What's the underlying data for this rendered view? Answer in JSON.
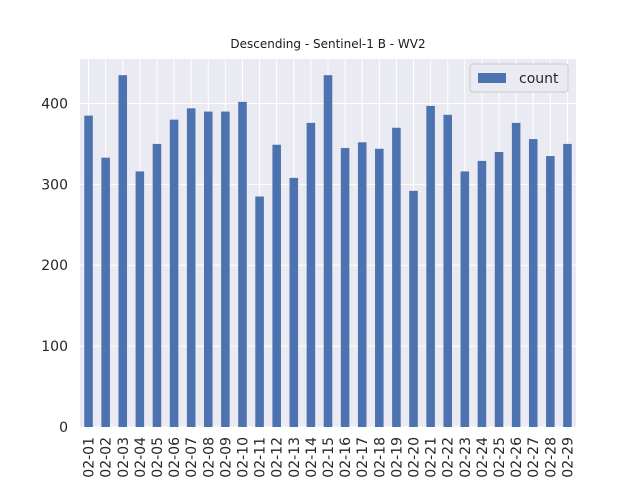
{
  "chart_data": {
    "type": "bar",
    "title": "Descending - Sentinel-1 B - WV2",
    "xlabel": "",
    "ylabel": "",
    "categories": [
      "02-01",
      "02-02",
      "02-03",
      "02-04",
      "02-05",
      "02-06",
      "02-07",
      "02-08",
      "02-09",
      "02-10",
      "02-11",
      "02-12",
      "02-13",
      "02-14",
      "02-15",
      "02-16",
      "02-17",
      "02-18",
      "02-19",
      "02-20",
      "02-21",
      "02-22",
      "02-23",
      "02-24",
      "02-25",
      "02-26",
      "02-27",
      "02-28",
      "02-29"
    ],
    "series": [
      {
        "name": "count",
        "color": "#4c72b0",
        "values": [
          385,
          333,
          435,
          316,
          350,
          380,
          394,
          390,
          390,
          402,
          285,
          349,
          308,
          376,
          435,
          345,
          352,
          344,
          370,
          292,
          397,
          386,
          316,
          329,
          340,
          376,
          356,
          335,
          350
        ]
      }
    ],
    "ylim": [
      0,
      455
    ],
    "yticks": [
      0,
      100,
      200,
      300,
      400
    ],
    "legend": "top-right",
    "grid": true,
    "background": "#eaeaf2"
  }
}
